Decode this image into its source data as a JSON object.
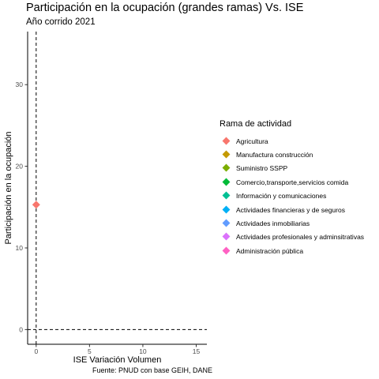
{
  "chart_data": {
    "type": "scatter",
    "title": "Participación en la ocupación (grandes ramas) Vs. ISE",
    "subtitle": "Año corrido 2021",
    "xlabel": "ISE Variación Volumen",
    "ylabel": "Participación en la ocupación",
    "caption": "Fuente: PNUD con base GEIH, DANE",
    "xlim": [
      -0.8,
      16.0
    ],
    "ylim": [
      -1.8,
      36.5
    ],
    "xticks": [
      0,
      5,
      10,
      15
    ],
    "yticks": [
      0,
      10,
      20,
      30
    ],
    "grid": false,
    "reference_lines": {
      "vertical_x": 0,
      "horizontal_y": 0,
      "style": "dashed"
    },
    "legend": {
      "title": "Rama de actividad",
      "position": "right"
    },
    "series": [
      {
        "name": "Agricultura",
        "color": "#F8766D",
        "points": [
          {
            "x": 0,
            "y": 15.3
          }
        ]
      },
      {
        "name": "Manufactura construcción",
        "color": "#C49A00",
        "points": []
      },
      {
        "name": "Suministro SSPP",
        "color": "#7CAE00",
        "points": []
      },
      {
        "name": "Comercio,transporte,servicios comida",
        "color": "#00BA38",
        "points": []
      },
      {
        "name": "Información y comunicaciones",
        "color": "#00C094",
        "points": []
      },
      {
        "name": "Actividades financieras y de seguros",
        "color": "#00B0F6",
        "points": []
      },
      {
        "name": "Actividades inmobiliarias",
        "color": "#619CFF",
        "points": []
      },
      {
        "name": "Actividades profesionales y adminsitrativas",
        "color": "#DB72FB",
        "points": []
      },
      {
        "name": "Administración pública",
        "color": "#FF61C3",
        "points": []
      }
    ]
  }
}
